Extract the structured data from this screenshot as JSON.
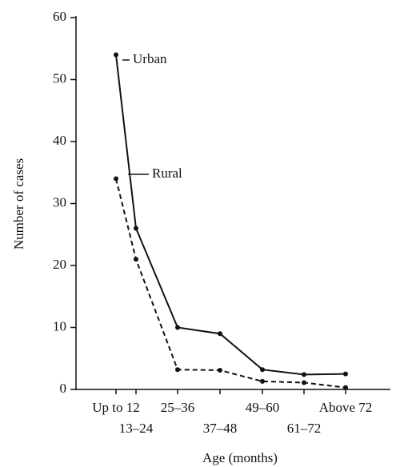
{
  "chart_data": {
    "type": "line",
    "x_label": "Age (months)",
    "y_label": "Number of cases",
    "categories": [
      "Up to 12",
      "13–24",
      "25–36",
      "37–48",
      "49–60",
      "61–72",
      "Above 72"
    ],
    "series": [
      {
        "name": "Urban",
        "color": "#111111",
        "line_style": "solid",
        "values": [
          54,
          26,
          10,
          9,
          3.2,
          2.4,
          2.5
        ]
      },
      {
        "name": "Rural",
        "color": "#111111",
        "line_style": "dashed",
        "values": [
          34,
          21,
          3.2,
          3.1,
          1.3,
          1.1,
          0.3
        ]
      }
    ],
    "ylim": [
      0,
      60
    ],
    "yticks": [
      0,
      10,
      20,
      30,
      40,
      50,
      60
    ],
    "grid": false
  }
}
